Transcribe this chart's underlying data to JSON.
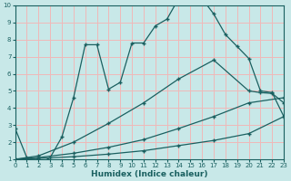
{
  "xlabel": "Humidex (Indice chaleur)",
  "bg_color": "#c8e8e8",
  "grid_color": "#f0b8b8",
  "line_color": "#1a6060",
  "xlim": [
    0,
    23
  ],
  "ylim": [
    1,
    10
  ],
  "xticks": [
    0,
    1,
    2,
    3,
    4,
    5,
    6,
    7,
    8,
    9,
    10,
    11,
    12,
    13,
    14,
    15,
    16,
    17,
    18,
    19,
    20,
    21,
    22,
    23
  ],
  "yticks": [
    1,
    2,
    3,
    4,
    5,
    6,
    7,
    8,
    9,
    10
  ],
  "line1_x": [
    0,
    1,
    2,
    3,
    4,
    5,
    6,
    7,
    8,
    9,
    10,
    11,
    12,
    13,
    14,
    15,
    16,
    17,
    18,
    19,
    20,
    21,
    22,
    23
  ],
  "line1_y": [
    2.8,
    1.1,
    0.7,
    1.1,
    2.3,
    4.6,
    7.7,
    7.7,
    5.1,
    5.5,
    7.8,
    7.8,
    8.8,
    9.2,
    10.4,
    10.35,
    10.4,
    9.5,
    8.3,
    7.6,
    6.9,
    5.0,
    4.9,
    3.5
  ],
  "line2_x": [
    0,
    2,
    5,
    8,
    11,
    14,
    17,
    20,
    23
  ],
  "line2_y": [
    1.0,
    1.05,
    1.15,
    1.3,
    1.5,
    1.8,
    2.1,
    2.5,
    3.5
  ],
  "line3_x": [
    0,
    2,
    5,
    8,
    11,
    14,
    17,
    20,
    23
  ],
  "line3_y": [
    1.0,
    1.1,
    1.35,
    1.7,
    2.15,
    2.8,
    3.5,
    4.3,
    4.6
  ],
  "line4_x": [
    0,
    2,
    5,
    8,
    11,
    14,
    17,
    20,
    21,
    22,
    23
  ],
  "line4_y": [
    1.0,
    1.2,
    2.0,
    3.1,
    4.3,
    5.7,
    6.8,
    5.0,
    4.9,
    4.85,
    4.3
  ]
}
